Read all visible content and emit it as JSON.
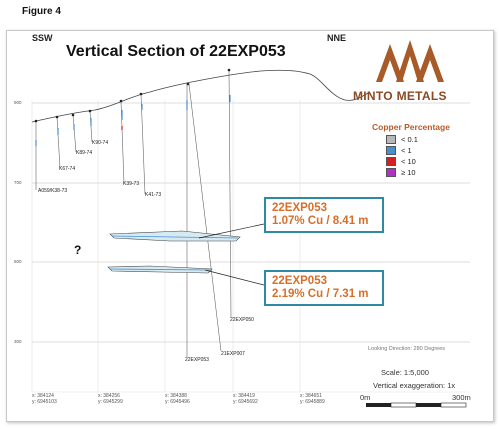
{
  "figure_label": "Figure 4",
  "directions": {
    "left": "SSW",
    "right": "NNE"
  },
  "title": "Vertical Section of 22EXP053",
  "logo_text": "MINTO METALS",
  "legend": {
    "title": "Copper Percentage",
    "items": [
      {
        "label": "< 0.1",
        "color": "#b8b8b8"
      },
      {
        "label": "< 1",
        "color": "#4a8fd0"
      },
      {
        "label": "< 10",
        "color": "#d42020"
      },
      {
        "label": "≥ 10",
        "color": "#b030c8"
      }
    ]
  },
  "intercepts": [
    {
      "hole": "22EXP053",
      "grade": "1.07% Cu / 8.41 m"
    },
    {
      "hole": "22EXP053",
      "grade": "2.19% Cu / 7.31 m"
    }
  ],
  "question_mark": "?",
  "elevations": [
    "900",
    "700",
    "500",
    "300"
  ],
  "drill_holes": [
    "A059/K38-73",
    "K67-74",
    "K89-74",
    "K90-74",
    "K39-73",
    "K41-73",
    "22EXP053",
    "21EXP007",
    "22EXP050"
  ],
  "looking_direction": "Looking Direction: 280 Degrees",
  "scale": "Scale: 1:5,000",
  "vertical_exaggeration": "Vertical exaggeration: 1x",
  "scale_bar": {
    "start": "0m",
    "end": "300m"
  },
  "eastings": [
    {
      "x": "x: 384124",
      "y": "y: 6945103"
    },
    {
      "x": "x: 384256",
      "y": "y: 6945299"
    },
    {
      "x": "x: 384388",
      "y": "y: 6945496"
    },
    {
      "x": "x: 384419",
      "y": "y: 6945692"
    },
    {
      "x": "x: 384651",
      "y": "y: 6945889"
    }
  ],
  "colors": {
    "accent_brown": "#8a4a23",
    "callout_border": "#2c8aa3",
    "callout_text": "#d66f2a"
  }
}
